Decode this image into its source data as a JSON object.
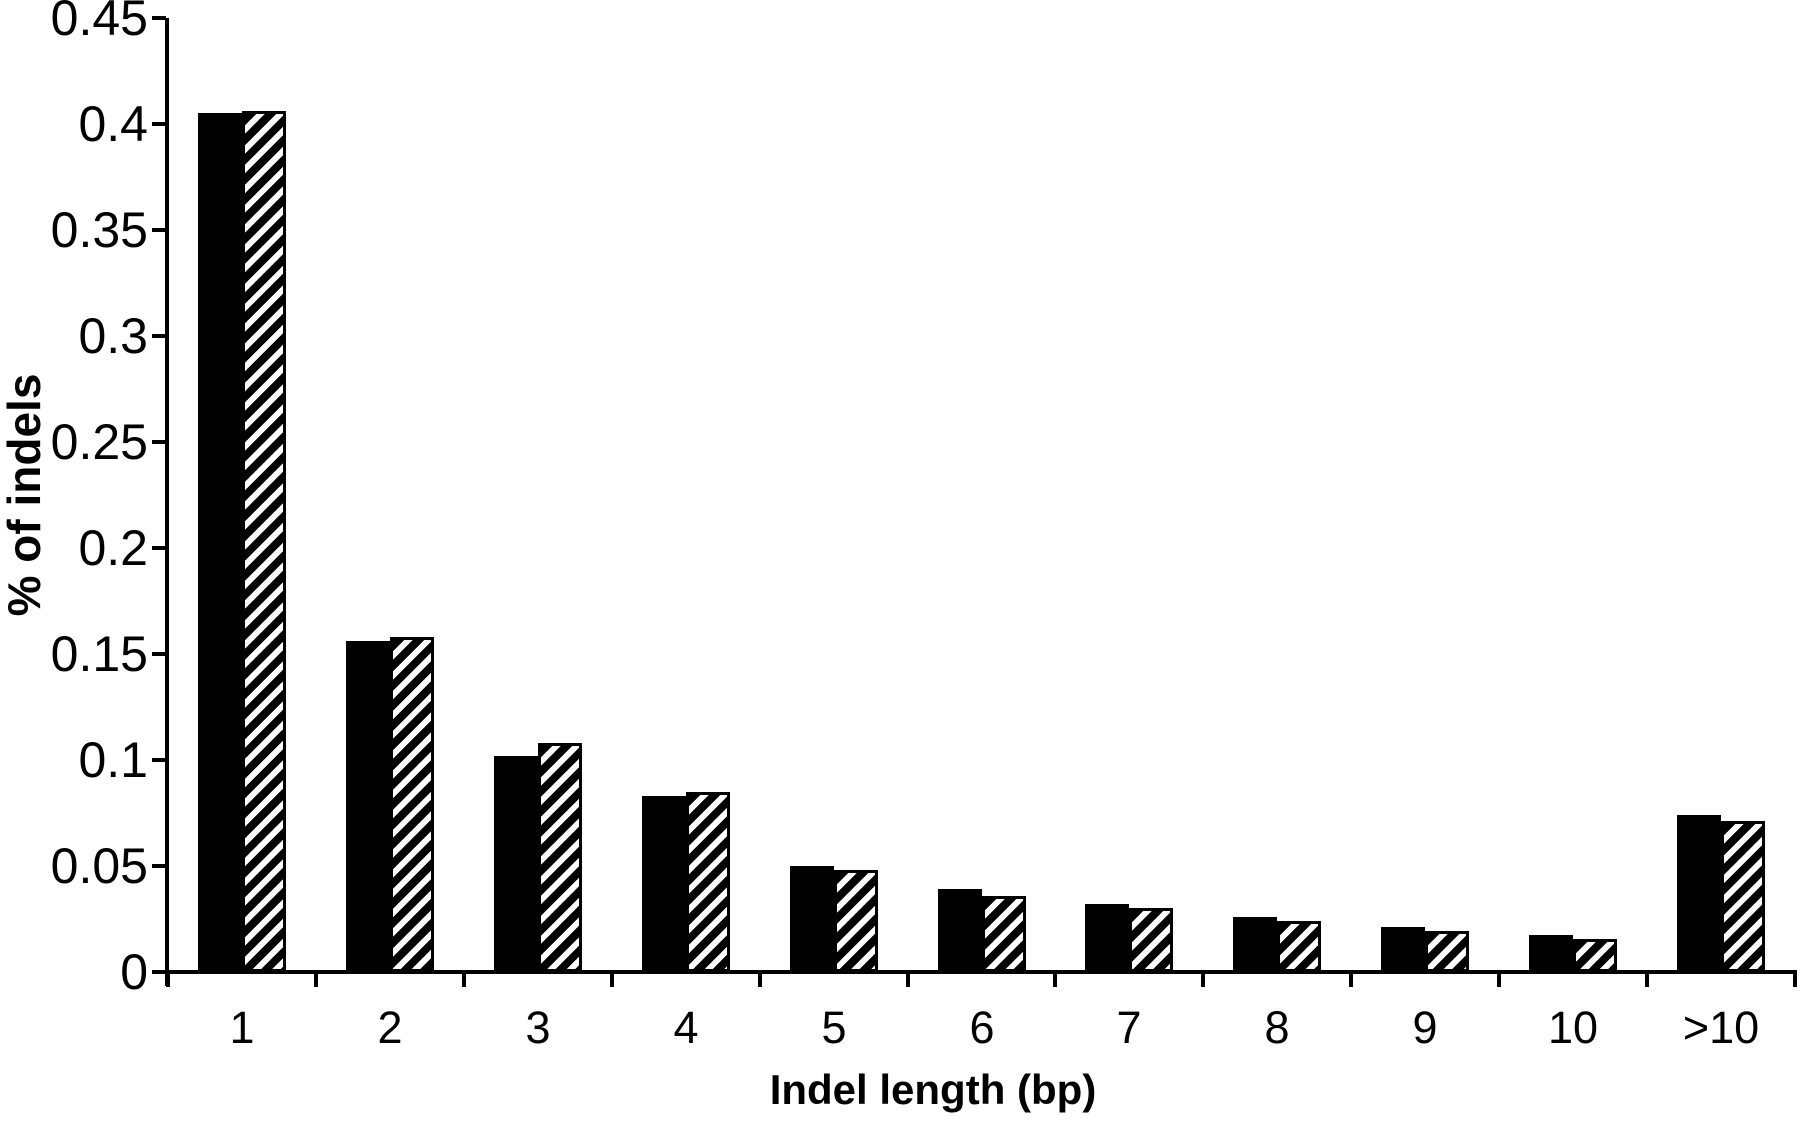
{
  "figure": {
    "background_color": "#ffffff",
    "ink_color": "#000000",
    "legend": "none",
    "title": ""
  },
  "chart_data": {
    "type": "bar",
    "title": "",
    "xlabel": "Indel length (bp)",
    "ylabel": "% of indels",
    "categories": [
      "1",
      "2",
      "3",
      "4",
      "5",
      "6",
      "7",
      "8",
      "9",
      "10",
      ">10"
    ],
    "series": [
      {
        "name": "solid-black-bars",
        "style": "solid",
        "color": "#000000",
        "values": [
          0.405,
          0.156,
          0.102,
          0.083,
          0.05,
          0.039,
          0.032,
          0.026,
          0.021,
          0.0175,
          0.074
        ]
      },
      {
        "name": "diagonal-hatched-bars",
        "style": "diagonal-hatch",
        "hatch_direction": "bottom-left-to-top-right",
        "color": "#000000",
        "hatch_background": "#ffffff",
        "values": [
          0.406,
          0.158,
          0.108,
          0.085,
          0.048,
          0.036,
          0.03,
          0.024,
          0.0195,
          0.0155,
          0.071
        ]
      }
    ],
    "ylim": [
      0,
      0.45
    ],
    "yticks": [
      {
        "label": "0.45",
        "value": 0.45
      },
      {
        "label": "0.4",
        "value": 0.4
      },
      {
        "label": "0.35",
        "value": 0.35
      },
      {
        "label": "0.3",
        "value": 0.3
      },
      {
        "label": "0.25",
        "value": 0.25
      },
      {
        "label": "0.2",
        "value": 0.2
      },
      {
        "label": "0.15",
        "value": 0.15
      },
      {
        "label": "0.1",
        "value": 0.1
      },
      {
        "label": "0.05",
        "value": 0.05
      },
      {
        "label": "0",
        "value": 0.0
      }
    ],
    "grid": false,
    "legend_position": "none"
  }
}
